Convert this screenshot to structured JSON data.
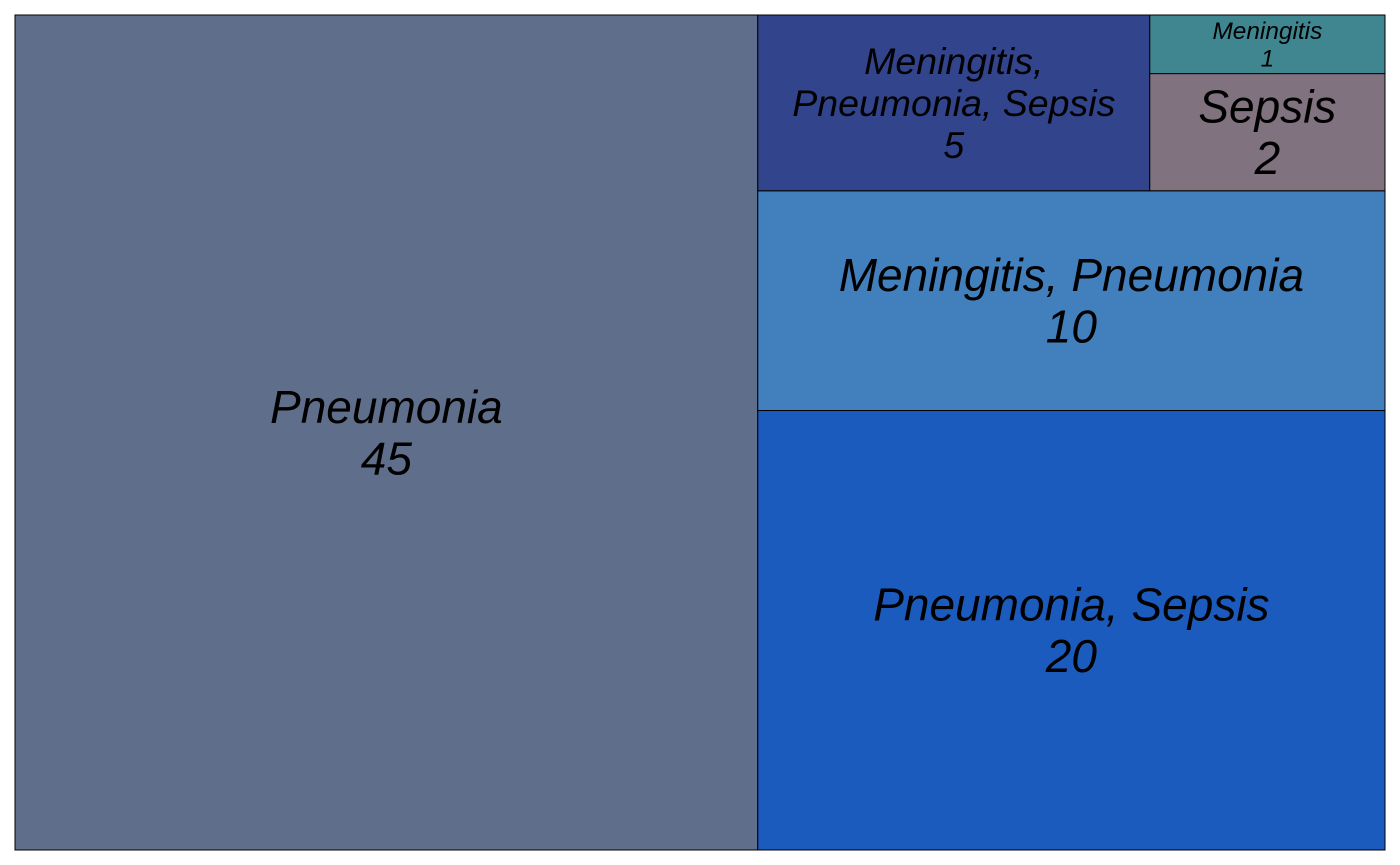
{
  "chart_data": {
    "type": "treemap",
    "title": "",
    "cells": [
      {
        "label_lines": [
          "Pneumonia"
        ],
        "value": 45,
        "color": "#5f6e8a"
      },
      {
        "label_lines": [
          "Pneumonia, Sepsis"
        ],
        "value": 20,
        "color": "#1c5bbe"
      },
      {
        "label_lines": [
          "Meningitis, Pneumonia"
        ],
        "value": 10,
        "color": "#427fbd"
      },
      {
        "label_lines": [
          "Meningitis,",
          "Pneumonia, Sepsis"
        ],
        "value": 5,
        "color": "#31448c"
      },
      {
        "label_lines": [
          "Sepsis"
        ],
        "value": 2,
        "color": "#80737f"
      },
      {
        "label_lines": [
          "Meningitis"
        ],
        "value": 1,
        "color": "#3f8690"
      }
    ]
  }
}
